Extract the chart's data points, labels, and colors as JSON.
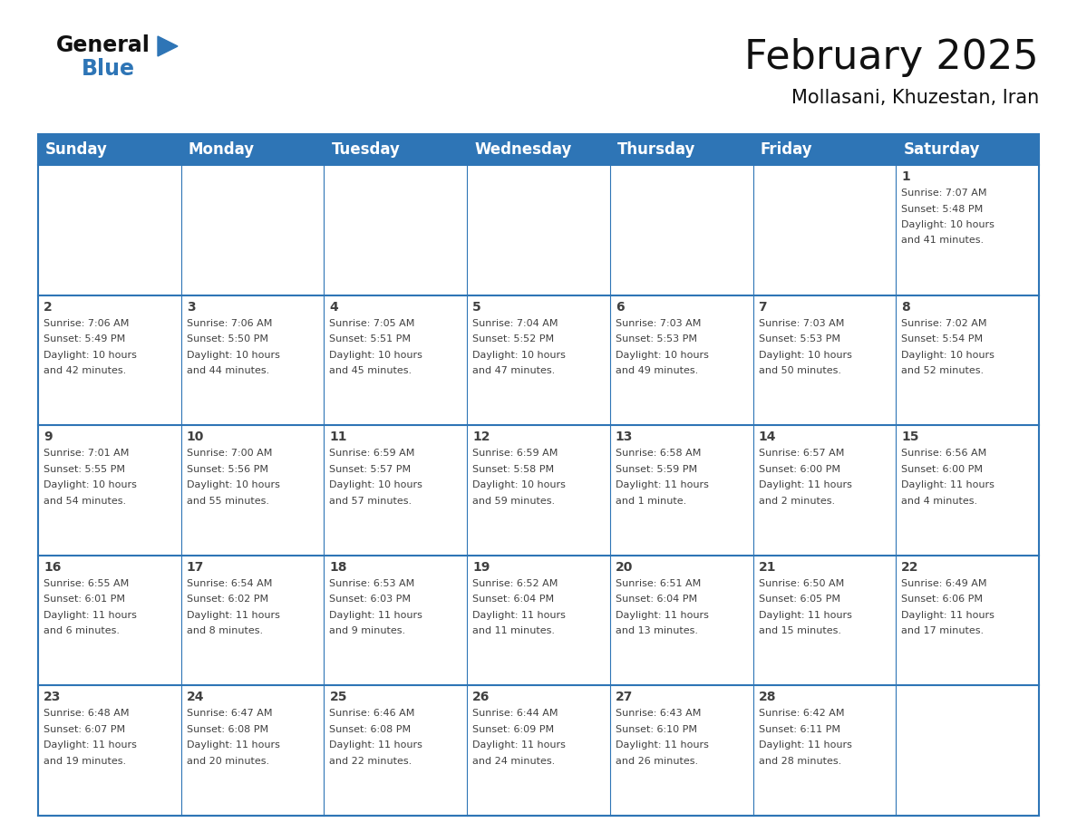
{
  "title": "February 2025",
  "subtitle": "Mollasani, Khuzestan, Iran",
  "header_color": "#2E75B6",
  "header_text_color": "#FFFFFF",
  "cell_bg": "#FFFFFF",
  "cell_bg_alt": "#F2F2F2",
  "day_names": [
    "Sunday",
    "Monday",
    "Tuesday",
    "Wednesday",
    "Thursday",
    "Friday",
    "Saturday"
  ],
  "days": [
    {
      "day": 1,
      "col": 6,
      "row": 0,
      "sunrise": "7:07 AM",
      "sunset": "5:48 PM",
      "daylight_h": "10 hours",
      "daylight_m": "and 41 minutes."
    },
    {
      "day": 2,
      "col": 0,
      "row": 1,
      "sunrise": "7:06 AM",
      "sunset": "5:49 PM",
      "daylight_h": "10 hours",
      "daylight_m": "and 42 minutes."
    },
    {
      "day": 3,
      "col": 1,
      "row": 1,
      "sunrise": "7:06 AM",
      "sunset": "5:50 PM",
      "daylight_h": "10 hours",
      "daylight_m": "and 44 minutes."
    },
    {
      "day": 4,
      "col": 2,
      "row": 1,
      "sunrise": "7:05 AM",
      "sunset": "5:51 PM",
      "daylight_h": "10 hours",
      "daylight_m": "and 45 minutes."
    },
    {
      "day": 5,
      "col": 3,
      "row": 1,
      "sunrise": "7:04 AM",
      "sunset": "5:52 PM",
      "daylight_h": "10 hours",
      "daylight_m": "and 47 minutes."
    },
    {
      "day": 6,
      "col": 4,
      "row": 1,
      "sunrise": "7:03 AM",
      "sunset": "5:53 PM",
      "daylight_h": "10 hours",
      "daylight_m": "and 49 minutes."
    },
    {
      "day": 7,
      "col": 5,
      "row": 1,
      "sunrise": "7:03 AM",
      "sunset": "5:53 PM",
      "daylight_h": "10 hours",
      "daylight_m": "and 50 minutes."
    },
    {
      "day": 8,
      "col": 6,
      "row": 1,
      "sunrise": "7:02 AM",
      "sunset": "5:54 PM",
      "daylight_h": "10 hours",
      "daylight_m": "and 52 minutes."
    },
    {
      "day": 9,
      "col": 0,
      "row": 2,
      "sunrise": "7:01 AM",
      "sunset": "5:55 PM",
      "daylight_h": "10 hours",
      "daylight_m": "and 54 minutes."
    },
    {
      "day": 10,
      "col": 1,
      "row": 2,
      "sunrise": "7:00 AM",
      "sunset": "5:56 PM",
      "daylight_h": "10 hours",
      "daylight_m": "and 55 minutes."
    },
    {
      "day": 11,
      "col": 2,
      "row": 2,
      "sunrise": "6:59 AM",
      "sunset": "5:57 PM",
      "daylight_h": "10 hours",
      "daylight_m": "and 57 minutes."
    },
    {
      "day": 12,
      "col": 3,
      "row": 2,
      "sunrise": "6:59 AM",
      "sunset": "5:58 PM",
      "daylight_h": "10 hours",
      "daylight_m": "and 59 minutes."
    },
    {
      "day": 13,
      "col": 4,
      "row": 2,
      "sunrise": "6:58 AM",
      "sunset": "5:59 PM",
      "daylight_h": "11 hours",
      "daylight_m": "and 1 minute."
    },
    {
      "day": 14,
      "col": 5,
      "row": 2,
      "sunrise": "6:57 AM",
      "sunset": "6:00 PM",
      "daylight_h": "11 hours",
      "daylight_m": "and 2 minutes."
    },
    {
      "day": 15,
      "col": 6,
      "row": 2,
      "sunrise": "6:56 AM",
      "sunset": "6:00 PM",
      "daylight_h": "11 hours",
      "daylight_m": "and 4 minutes."
    },
    {
      "day": 16,
      "col": 0,
      "row": 3,
      "sunrise": "6:55 AM",
      "sunset": "6:01 PM",
      "daylight_h": "11 hours",
      "daylight_m": "and 6 minutes."
    },
    {
      "day": 17,
      "col": 1,
      "row": 3,
      "sunrise": "6:54 AM",
      "sunset": "6:02 PM",
      "daylight_h": "11 hours",
      "daylight_m": "and 8 minutes."
    },
    {
      "day": 18,
      "col": 2,
      "row": 3,
      "sunrise": "6:53 AM",
      "sunset": "6:03 PM",
      "daylight_h": "11 hours",
      "daylight_m": "and 9 minutes."
    },
    {
      "day": 19,
      "col": 3,
      "row": 3,
      "sunrise": "6:52 AM",
      "sunset": "6:04 PM",
      "daylight_h": "11 hours",
      "daylight_m": "and 11 minutes."
    },
    {
      "day": 20,
      "col": 4,
      "row": 3,
      "sunrise": "6:51 AM",
      "sunset": "6:04 PM",
      "daylight_h": "11 hours",
      "daylight_m": "and 13 minutes."
    },
    {
      "day": 21,
      "col": 5,
      "row": 3,
      "sunrise": "6:50 AM",
      "sunset": "6:05 PM",
      "daylight_h": "11 hours",
      "daylight_m": "and 15 minutes."
    },
    {
      "day": 22,
      "col": 6,
      "row": 3,
      "sunrise": "6:49 AM",
      "sunset": "6:06 PM",
      "daylight_h": "11 hours",
      "daylight_m": "and 17 minutes."
    },
    {
      "day": 23,
      "col": 0,
      "row": 4,
      "sunrise": "6:48 AM",
      "sunset": "6:07 PM",
      "daylight_h": "11 hours",
      "daylight_m": "and 19 minutes."
    },
    {
      "day": 24,
      "col": 1,
      "row": 4,
      "sunrise": "6:47 AM",
      "sunset": "6:08 PM",
      "daylight_h": "11 hours",
      "daylight_m": "and 20 minutes."
    },
    {
      "day": 25,
      "col": 2,
      "row": 4,
      "sunrise": "6:46 AM",
      "sunset": "6:08 PM",
      "daylight_h": "11 hours",
      "daylight_m": "and 22 minutes."
    },
    {
      "day": 26,
      "col": 3,
      "row": 4,
      "sunrise": "6:44 AM",
      "sunset": "6:09 PM",
      "daylight_h": "11 hours",
      "daylight_m": "and 24 minutes."
    },
    {
      "day": 27,
      "col": 4,
      "row": 4,
      "sunrise": "6:43 AM",
      "sunset": "6:10 PM",
      "daylight_h": "11 hours",
      "daylight_m": "and 26 minutes."
    },
    {
      "day": 28,
      "col": 5,
      "row": 4,
      "sunrise": "6:42 AM",
      "sunset": "6:11 PM",
      "daylight_h": "11 hours",
      "daylight_m": "and 28 minutes."
    }
  ],
  "logo_color_general": "#111111",
  "logo_color_blue": "#2E75B6",
  "logo_triangle_color": "#2E75B6",
  "grid_line_color": "#2E75B6",
  "text_color": "#404040",
  "title_fontsize": 32,
  "subtitle_fontsize": 15,
  "header_fontsize": 12,
  "day_num_fontsize": 10,
  "cell_text_fontsize": 8
}
